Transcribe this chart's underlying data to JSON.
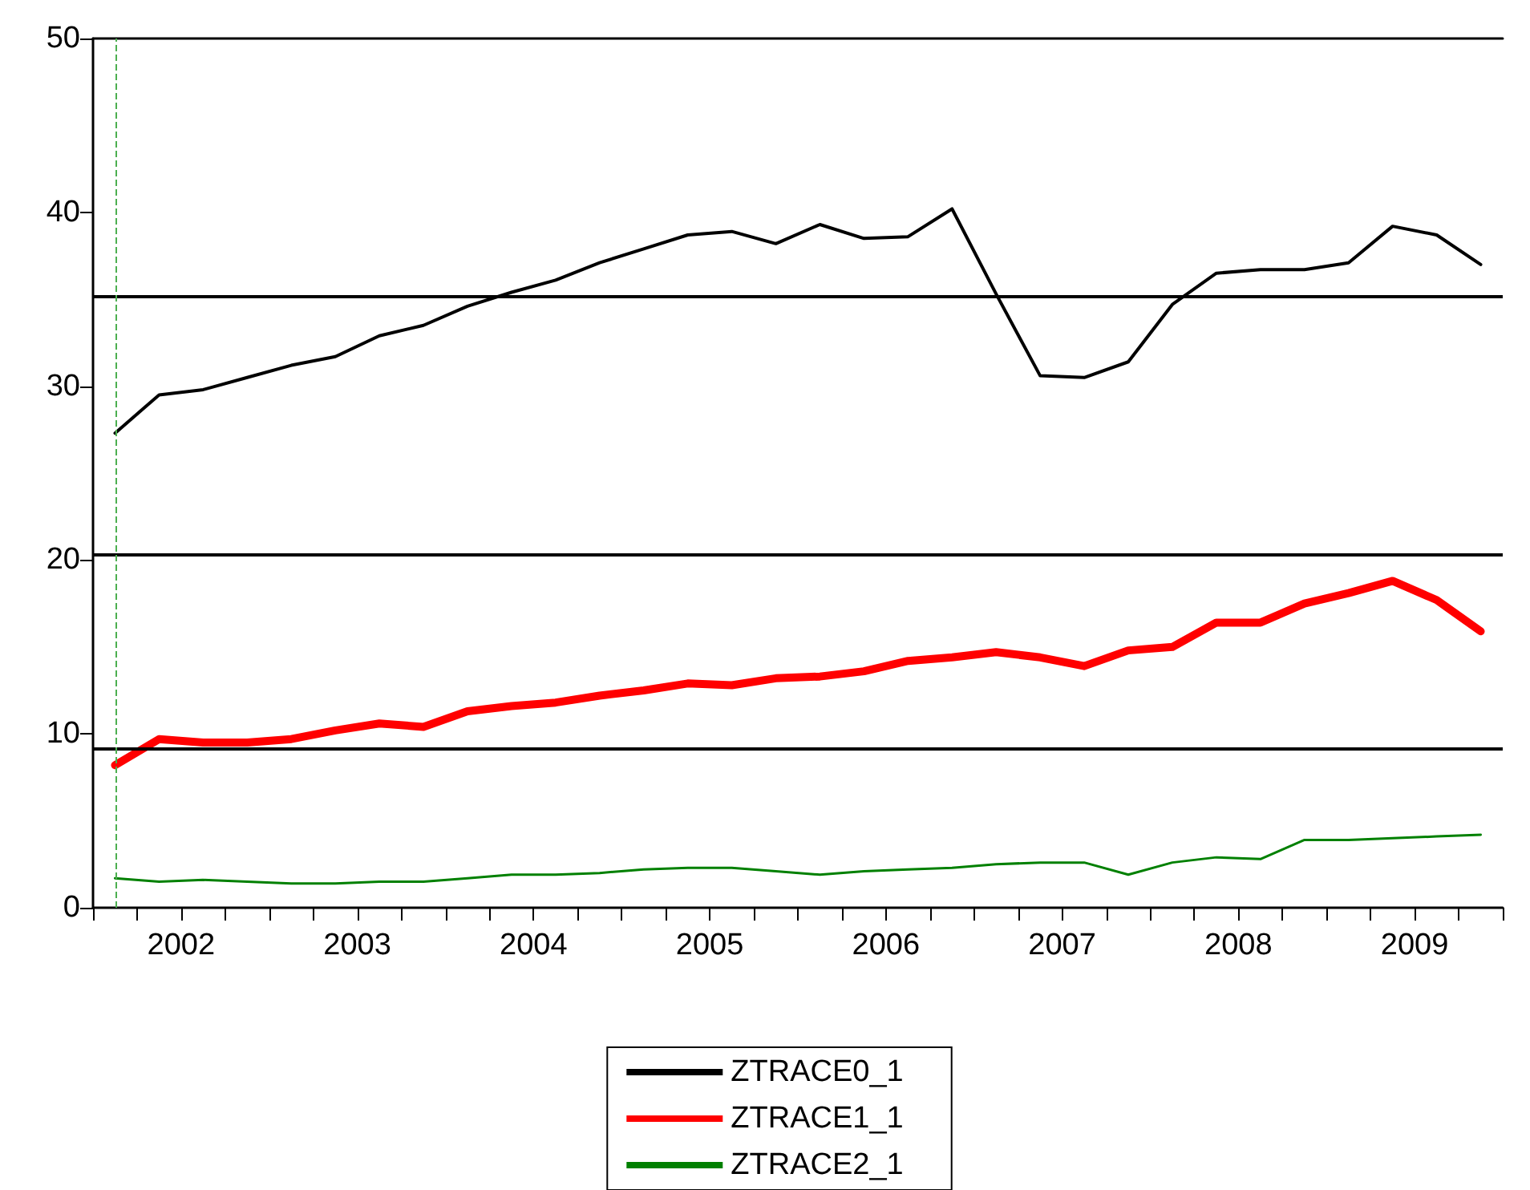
{
  "chart_data": {
    "type": "line",
    "x": [
      2002.125,
      2002.375,
      2002.625,
      2002.875,
      2003.125,
      2003.375,
      2003.625,
      2003.875,
      2004.125,
      2004.375,
      2004.625,
      2004.875,
      2005.125,
      2005.375,
      2005.625,
      2005.875,
      2006.125,
      2006.375,
      2006.625,
      2006.875,
      2007.125,
      2007.375,
      2007.625,
      2007.875,
      2008.125,
      2008.375,
      2008.625,
      2008.875,
      2009.125,
      2009.375,
      2009.625,
      2009.875
    ],
    "series": [
      {
        "name": "ZTRACE0_1",
        "color": "#000000",
        "values": [
          27.3,
          29.5,
          29.8,
          30.5,
          31.2,
          31.7,
          32.9,
          33.5,
          34.6,
          35.4,
          36.1,
          37.1,
          37.9,
          38.7,
          38.9,
          38.2,
          39.3,
          38.5,
          38.6,
          40.2,
          35.3,
          30.6,
          30.5,
          31.4,
          34.7,
          36.5,
          36.7,
          36.7,
          37.1,
          39.2,
          38.7,
          37.0
        ]
      },
      {
        "name": "ZTRACE1_1",
        "color": "#ff0000",
        "values": [
          8.2,
          9.7,
          9.5,
          9.5,
          9.7,
          10.2,
          10.6,
          10.4,
          11.3,
          11.6,
          11.8,
          12.2,
          12.5,
          12.9,
          12.8,
          13.2,
          13.3,
          13.6,
          14.2,
          14.4,
          14.7,
          14.4,
          13.9,
          14.8,
          15.0,
          16.4,
          16.4,
          17.5,
          18.1,
          18.8,
          17.7,
          15.9
        ]
      },
      {
        "name": "ZTRACE2_1",
        "color": "#008000",
        "values": [
          1.7,
          1.5,
          1.6,
          1.5,
          1.4,
          1.4,
          1.5,
          1.5,
          1.7,
          1.9,
          1.9,
          2.0,
          2.2,
          2.3,
          2.3,
          2.1,
          1.9,
          2.1,
          2.2,
          2.3,
          2.5,
          2.6,
          2.6,
          1.9,
          2.6,
          2.9,
          2.8,
          3.9,
          3.9,
          4.0,
          4.1,
          4.2
        ]
      }
    ],
    "xlim": [
      2002,
      2010
    ],
    "xticks": [
      {
        "value": 2002,
        "label": null
      },
      {
        "value": 2002.25,
        "label": null
      },
      {
        "value": 2002.5,
        "label": "2002"
      },
      {
        "value": 2002.75,
        "label": null
      },
      {
        "value": 2003,
        "label": null
      },
      {
        "value": 2003.25,
        "label": null
      },
      {
        "value": 2003.5,
        "label": "2003"
      },
      {
        "value": 2003.75,
        "label": null
      },
      {
        "value": 2004,
        "label": null
      },
      {
        "value": 2004.25,
        "label": null
      },
      {
        "value": 2004.5,
        "label": "2004"
      },
      {
        "value": 2004.75,
        "label": null
      },
      {
        "value": 2005,
        "label": null
      },
      {
        "value": 2005.25,
        "label": null
      },
      {
        "value": 2005.5,
        "label": "2005"
      },
      {
        "value": 2005.75,
        "label": null
      },
      {
        "value": 2006,
        "label": null
      },
      {
        "value": 2006.25,
        "label": null
      },
      {
        "value": 2006.5,
        "label": "2006"
      },
      {
        "value": 2006.75,
        "label": null
      },
      {
        "value": 2007,
        "label": null
      },
      {
        "value": 2007.25,
        "label": null
      },
      {
        "value": 2007.5,
        "label": "2007"
      },
      {
        "value": 2007.75,
        "label": null
      },
      {
        "value": 2008,
        "label": null
      },
      {
        "value": 2008.25,
        "label": null
      },
      {
        "value": 2008.5,
        "label": "2008"
      },
      {
        "value": 2008.75,
        "label": null
      },
      {
        "value": 2009,
        "label": null
      },
      {
        "value": 2009.25,
        "label": null
      },
      {
        "value": 2009.5,
        "label": "2009"
      },
      {
        "value": 2009.75,
        "label": null
      },
      {
        "value": 2010,
        "label": null
      }
    ],
    "ylim": [
      0,
      50
    ],
    "yticks": [
      0,
      10,
      20,
      30,
      40,
      50
    ],
    "ref_lines": [
      {
        "axis": "y",
        "value": 35.2,
        "color": "#000000",
        "line_style": "solid"
      },
      {
        "axis": "y",
        "value": 20.3,
        "color": "#000000",
        "line_style": "solid"
      },
      {
        "axis": "y",
        "value": 9.2,
        "color": "#000000",
        "line_style": "solid"
      },
      {
        "axis": "x",
        "value": 2002.125,
        "color": "#4caf50",
        "line_style": "dashed"
      }
    ],
    "grid": false,
    "legend": "bottom",
    "marker": "none",
    "line_style": "solid"
  }
}
